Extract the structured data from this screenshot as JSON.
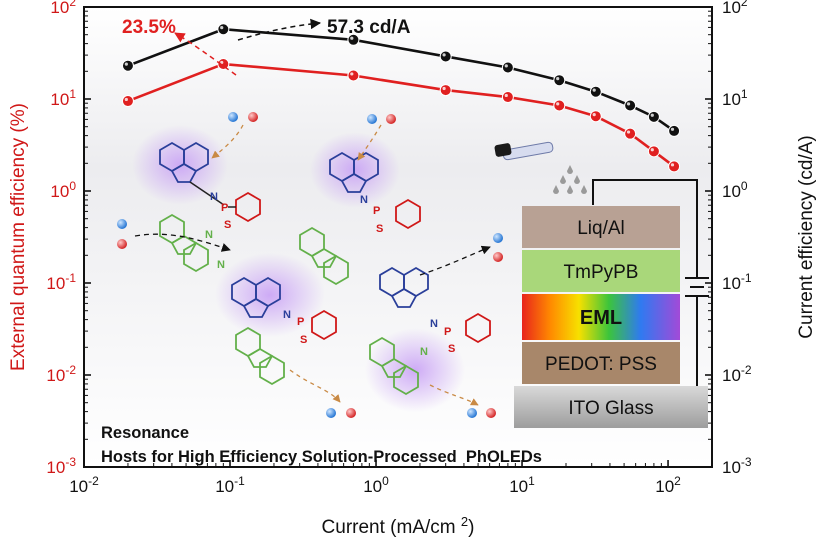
{
  "chart_data": {
    "type": "line",
    "x_scale": "log",
    "y_scale": "log",
    "xlabel": "Current (mA/cm²)",
    "ylabel_left": "External quantum efficiency (%)",
    "ylabel_right": "Current efficiency (cd/A)",
    "xlim": [
      0.01,
      200
    ],
    "ylim_left": [
      0.001,
      100
    ],
    "ylim_right": [
      0.001,
      100
    ],
    "x_ticks": [
      {
        "base": "10",
        "exp": "-2",
        "value": 0.01
      },
      {
        "base": "10",
        "exp": "-1",
        "value": 0.1
      },
      {
        "base": "10",
        "exp": "0",
        "value": 1
      },
      {
        "base": "10",
        "exp": "1",
        "value": 10
      },
      {
        "base": "10",
        "exp": "2",
        "value": 100
      }
    ],
    "y_ticks_left": [
      {
        "base": "10",
        "exp": "2",
        "value": 100
      },
      {
        "base": "10",
        "exp": "1",
        "value": 10
      },
      {
        "base": "10",
        "exp": "0",
        "value": 1
      },
      {
        "base": "10",
        "exp": "-1",
        "value": 0.1
      },
      {
        "base": "10",
        "exp": "-2",
        "value": 0.01
      },
      {
        "base": "10",
        "exp": "-3",
        "value": 0.001
      }
    ],
    "y_ticks_right": [
      {
        "base": "10",
        "exp": "2",
        "value": 100
      },
      {
        "base": "10",
        "exp": "1",
        "value": 10
      },
      {
        "base": "10",
        "exp": "0",
        "value": 1
      },
      {
        "base": "10",
        "exp": "-1",
        "value": 0.1
      },
      {
        "base": "10",
        "exp": "-2",
        "value": 0.01
      },
      {
        "base": "10",
        "exp": "-3",
        "value": 0.001
      }
    ],
    "series": [
      {
        "name": "EQE",
        "axis": "left",
        "color": "#e02020",
        "x": [
          0.02,
          0.09,
          0.7,
          3,
          8,
          18,
          32,
          55,
          80,
          110
        ],
        "y": [
          9.5,
          24,
          18,
          12.5,
          10.5,
          8.5,
          6.5,
          4.2,
          2.7,
          1.85
        ]
      },
      {
        "name": "CE",
        "axis": "right",
        "color": "#111111",
        "x": [
          0.02,
          0.09,
          0.7,
          3,
          8,
          18,
          32,
          55,
          80,
          110
        ],
        "y": [
          23,
          57.3,
          44,
          29,
          22,
          16,
          12,
          8.5,
          6.4,
          4.5
        ]
      }
    ],
    "annotations": {
      "eqe_peak": "23.5%",
      "ce_peak": "57.3 cd/A",
      "title_line1": "Resonance",
      "title_line2": "Hosts for High Efficiency Solution-Processed  PhOLEDs"
    },
    "device_stack": [
      "Liq/Al",
      "TmPyPB",
      "EML",
      "PEDOT: PSS",
      "ITO Glass"
    ],
    "molecule_labels": {
      "n": "N",
      "p": "P",
      "s": "S"
    }
  },
  "colors": {
    "eqe": "#e02020",
    "ce": "#111111",
    "left_axis": "#d01818",
    "carbazole_blue": "#2a3f9a",
    "phenyl_green": "#63b04a",
    "glow": "#b07ae8"
  }
}
